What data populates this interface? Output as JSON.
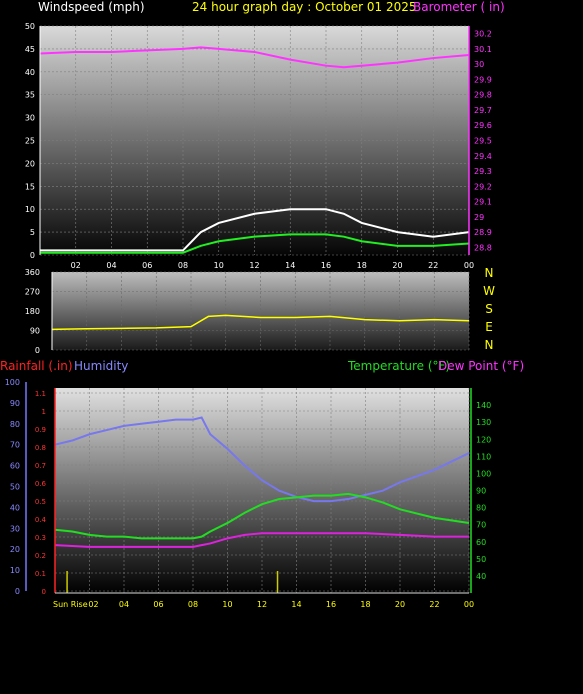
{
  "chart_data": [
    {
      "type": "line",
      "title": "24 hour graph day : October 01 2025",
      "left_label": "Windspeed (mph)",
      "right_label": "Barometer ( in)",
      "x_ticks": [
        "02",
        "04",
        "06",
        "08",
        "10",
        "12",
        "14",
        "16",
        "18",
        "20",
        "22",
        "00"
      ],
      "x_range_hours": [
        0,
        24
      ],
      "ylim_left": [
        0,
        50
      ],
      "yticks_left": [
        "0",
        "5",
        "10",
        "15",
        "20",
        "25",
        "30",
        "35",
        "40",
        "45",
        "50"
      ],
      "ylim_right": [
        28.75,
        30.25
      ],
      "yticks_right": [
        "28.8",
        "28.9",
        "29",
        "29.1",
        "29.2",
        "29.3",
        "29.4",
        "29.5",
        "29.6",
        "29.7",
        "29.8",
        "29.9",
        "30",
        "30.1",
        "30.2"
      ],
      "grid": true,
      "series": [
        {
          "axis": "right",
          "color": "#ff33ff",
          "hours": [
            0,
            2,
            4,
            6,
            8,
            9,
            10,
            12,
            14,
            16,
            17,
            18,
            20,
            22,
            24
          ],
          "values": [
            30.07,
            30.08,
            30.08,
            30.09,
            30.1,
            30.11,
            30.1,
            30.08,
            30.03,
            29.99,
            29.98,
            29.99,
            30.01,
            30.04,
            30.06
          ]
        },
        {
          "axis": "left",
          "color": "#ffffff",
          "hours": [
            0,
            2,
            4,
            6,
            8,
            9,
            10,
            12,
            14,
            16,
            17,
            18,
            20,
            22,
            24
          ],
          "values": [
            1,
            1,
            1,
            1,
            1,
            5,
            7,
            9,
            10,
            10,
            9,
            7,
            5,
            4,
            5
          ]
        },
        {
          "axis": "left",
          "color": "#22ee22",
          "hours": [
            0,
            2,
            4,
            6,
            8,
            9,
            10,
            12,
            14,
            16,
            17,
            18,
            20,
            22,
            24
          ],
          "values": [
            0.5,
            0.5,
            0.5,
            0.5,
            0.5,
            2,
            3,
            4,
            4.5,
            4.5,
            4,
            3,
            2,
            2,
            2.5
          ]
        }
      ]
    },
    {
      "type": "line",
      "ylim": [
        0,
        360
      ],
      "yticks": [
        "0",
        "90",
        "180",
        "270",
        "360"
      ],
      "right_labels": [
        "N",
        "W",
        "S",
        "E",
        "N"
      ],
      "series": [
        {
          "color": "#ffff00",
          "hours": [
            0,
            2,
            4,
            6,
            8,
            9,
            10,
            12,
            14,
            16,
            18,
            20,
            22,
            24
          ],
          "values": [
            95,
            98,
            100,
            102,
            108,
            155,
            160,
            150,
            150,
            155,
            140,
            135,
            140,
            135
          ]
        }
      ]
    },
    {
      "type": "line",
      "legend": [
        "Rainfall (.in)",
        "Humidity",
        "Temperature (°F)",
        "Dew Point (°F)"
      ],
      "x_ticks": [
        "Sun Rise",
        "02",
        "04",
        "06",
        "08",
        "10",
        "12",
        "14",
        "16",
        "18",
        "20",
        "22",
        "00"
      ],
      "ylim_humidity": [
        0,
        100
      ],
      "yticks_humidity": [
        "0",
        "10",
        "20",
        "30",
        "40",
        "50",
        "60",
        "70",
        "80",
        "90",
        "100"
      ],
      "ylim_rain": [
        0,
        1.2
      ],
      "yticks_rain": [
        "0",
        "0.1",
        "0.2",
        "0.3",
        "0.4",
        "0.5",
        "0.6",
        "0.7",
        "0.8",
        "0.9",
        "1",
        "1.1"
      ],
      "ylim_temp": [
        30,
        150
      ],
      "yticks_temp": [
        "40",
        "50",
        "60",
        "70",
        "80",
        "90",
        "100",
        "110",
        "120",
        "130",
        "140"
      ],
      "markers_hours": [
        0.7,
        12.9
      ],
      "series": [
        {
          "name": "Humidity",
          "axis": "humidity",
          "color": "#7777ee",
          "hours": [
            0,
            1,
            2,
            3,
            4,
            5,
            6,
            7,
            8,
            8.5,
            9,
            10,
            11,
            12,
            13,
            14,
            15,
            16,
            17,
            18,
            19,
            20,
            22,
            24
          ],
          "values": [
            70,
            72,
            75,
            77,
            79,
            80,
            81,
            82,
            82,
            83,
            75,
            68,
            60,
            53,
            48,
            45,
            43,
            43,
            44,
            46,
            48,
            52,
            58,
            66
          ]
        },
        {
          "name": "Temperature",
          "axis": "temp",
          "color": "#22dd22",
          "hours": [
            0,
            1,
            2,
            3,
            4,
            5,
            6,
            7,
            8,
            8.5,
            9,
            10,
            11,
            12,
            13,
            14,
            15,
            16,
            17,
            18,
            19,
            20,
            22,
            24
          ],
          "values": [
            67,
            66,
            64,
            63,
            63,
            62,
            62,
            62,
            62,
            63,
            66,
            71,
            77,
            82,
            85,
            86,
            87,
            87,
            88,
            86,
            83,
            79,
            74,
            71
          ]
        },
        {
          "name": "Dew Point",
          "axis": "temp",
          "color": "#dd22dd",
          "hours": [
            0,
            2,
            4,
            6,
            8,
            8.5,
            9,
            10,
            11,
            12,
            13,
            14,
            16,
            18,
            20,
            22,
            24
          ],
          "values": [
            58,
            57,
            57,
            57,
            57,
            58,
            59,
            62,
            64,
            65,
            65,
            65,
            65,
            65,
            64,
            63,
            63
          ]
        }
      ]
    }
  ]
}
